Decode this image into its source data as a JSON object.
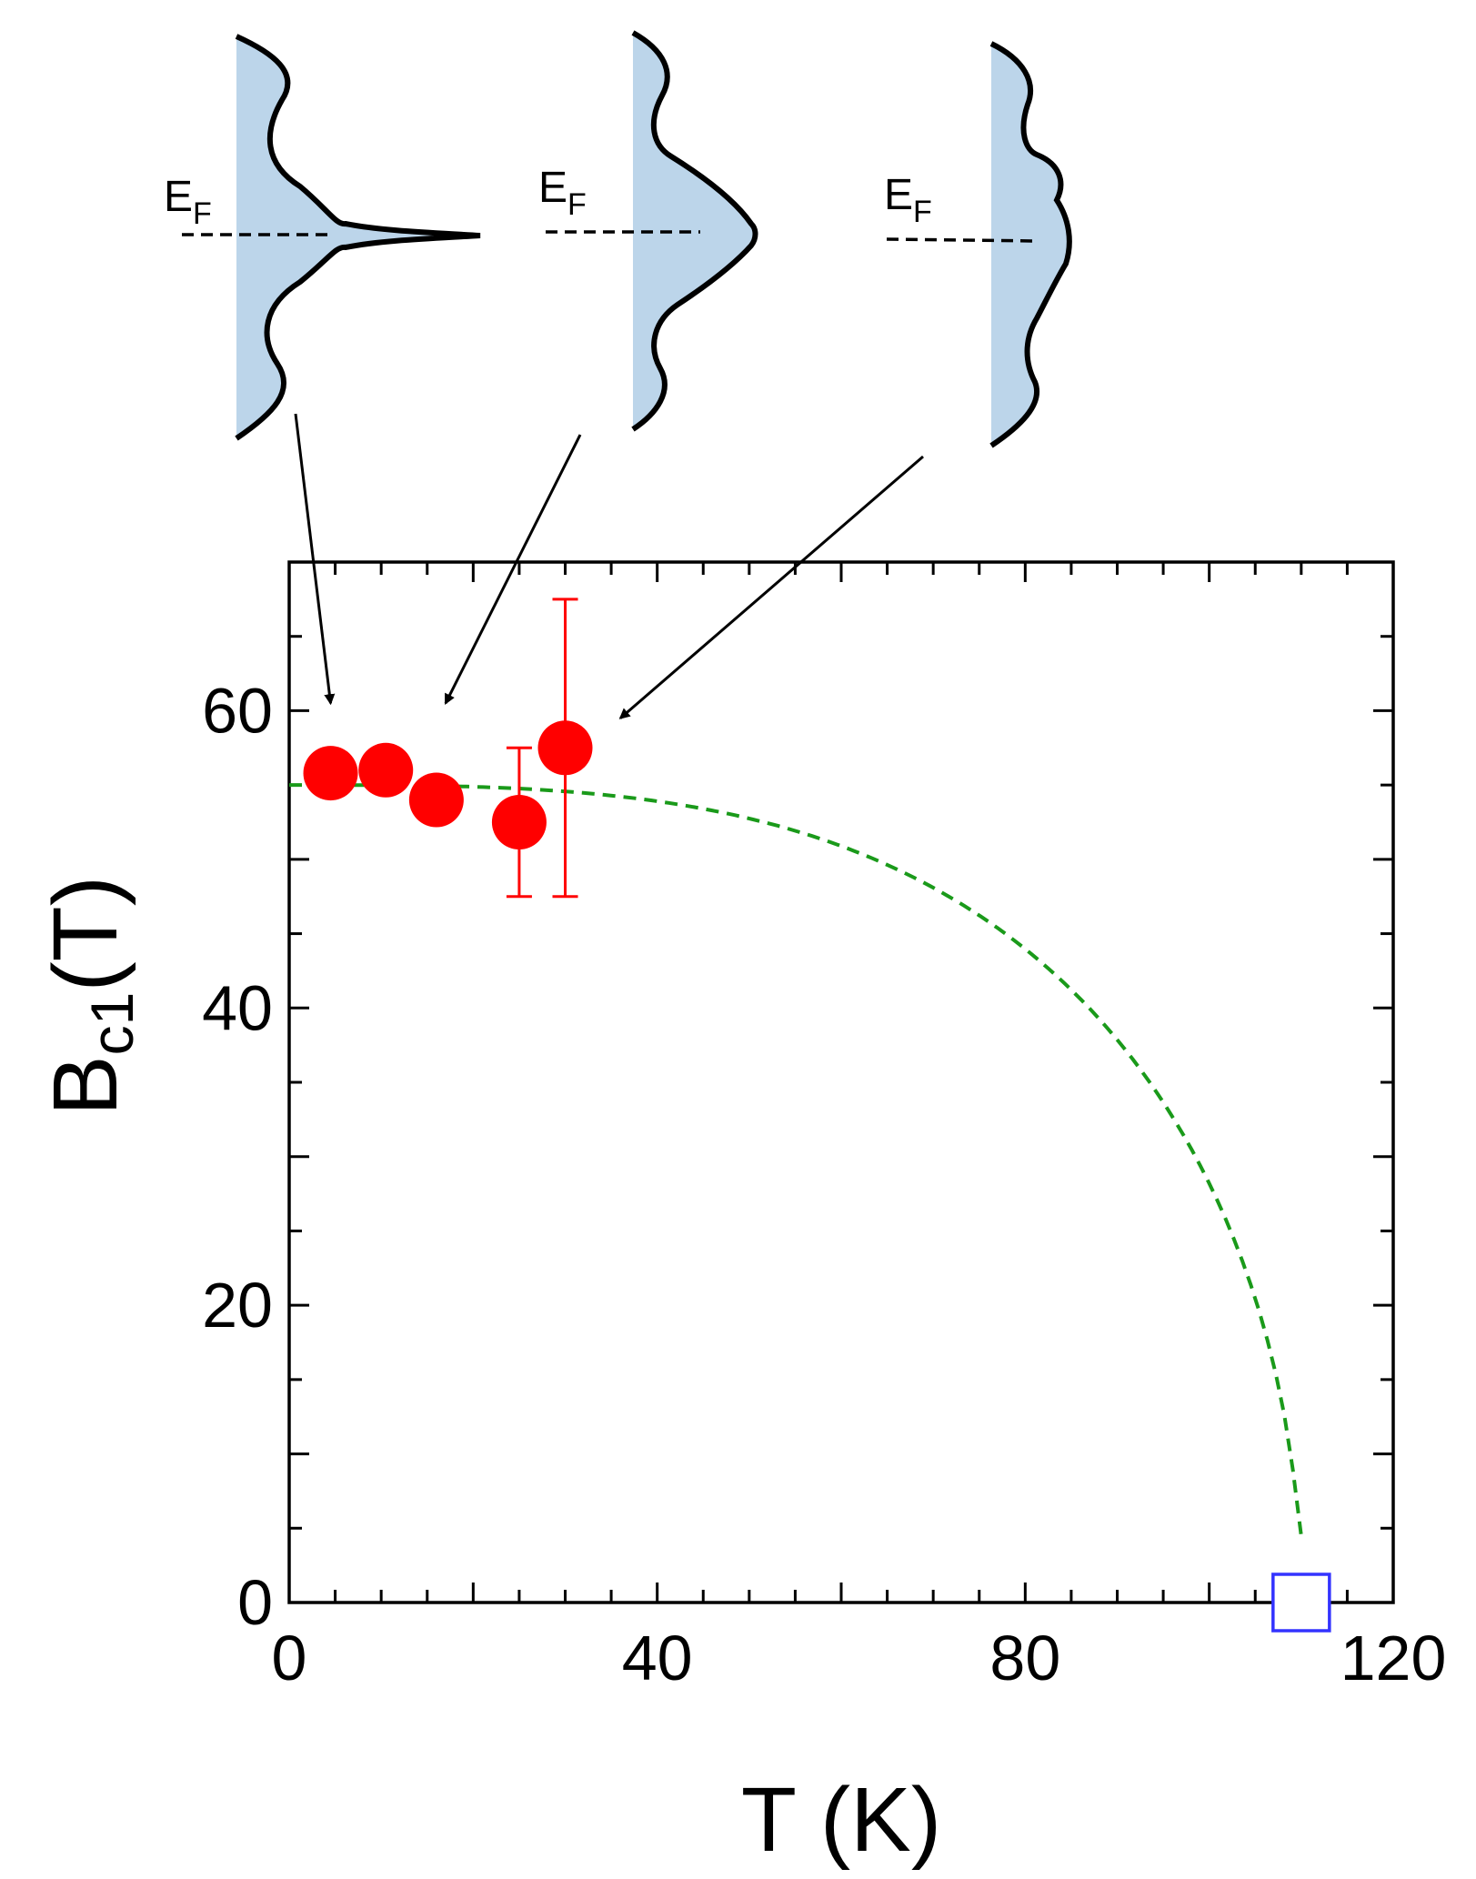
{
  "chart_data": {
    "type": "scatter",
    "xlabel": "T (K)",
    "ylabel": {
      "main": "B",
      "sub": "c1",
      "tail": "(T)"
    },
    "xlim": [
      0,
      120
    ],
    "ylim": [
      0,
      70
    ],
    "x_ticks": [
      0,
      40,
      80,
      120
    ],
    "y_ticks": [
      0,
      20,
      40,
      60
    ],
    "x_minor_step": 5,
    "y_minor_step": 5,
    "grid": false,
    "series": [
      {
        "marker": "filled-circle",
        "color": "#ff0000",
        "points": [
          {
            "x": 4.5,
            "y": 55.8
          },
          {
            "x": 10.5,
            "y": 56.0
          },
          {
            "x": 16.0,
            "y": 54.0
          },
          {
            "x": 25.0,
            "y": 52.5,
            "err_low": 47.5,
            "err_high": 57.5
          },
          {
            "x": 30.0,
            "y": 57.5,
            "err_low": 47.5,
            "err_high": 67.5
          }
        ]
      },
      {
        "marker": "open-square",
        "color": "#3333ff",
        "points": [
          {
            "x": 110.0,
            "y": 0.0
          }
        ]
      }
    ],
    "fit_curve": {
      "style": "dashed",
      "color": "#1a9a1a",
      "b0": 55.0,
      "tc": 110.0,
      "x_start": 0,
      "x_end": 110
    },
    "insets": [
      {
        "label_main": "E",
        "label_sub": "F",
        "shape": "sharp-peak",
        "fill": "#bcd5ea",
        "points_to": {
          "x": 4.5,
          "y": 60.5
        }
      },
      {
        "label_main": "E",
        "label_sub": "F",
        "shape": "broad-peak",
        "fill": "#bcd5ea",
        "points_to": {
          "x": 17.0,
          "y": 60.5
        }
      },
      {
        "label_main": "E",
        "label_sub": "F",
        "shape": "flat-hump",
        "fill": "#bcd5ea",
        "points_to": {
          "x": 36.0,
          "y": 59.5
        }
      }
    ]
  }
}
